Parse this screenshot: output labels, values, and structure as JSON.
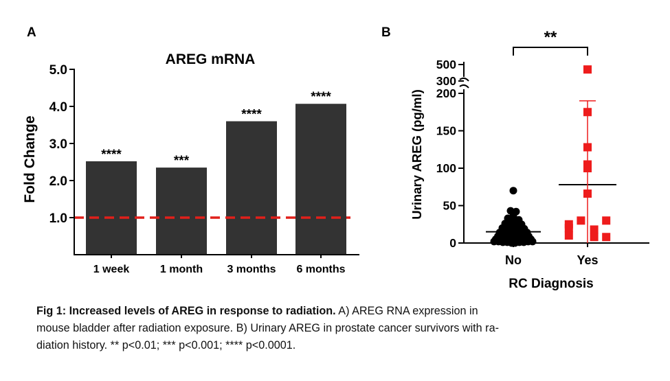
{
  "chart_data": [
    {
      "panel": "A",
      "type": "bar",
      "title": "AREG mRNA",
      "ylabel": "Fold Change",
      "xlabel": "",
      "ylim": [
        0,
        5
      ],
      "yticks": [
        "5.0",
        "4.0",
        "3.0",
        "2.0",
        "1.0"
      ],
      "ytick_values": [
        5,
        4,
        3,
        2,
        1
      ],
      "categories": [
        "1 week",
        "1 month",
        "3 months",
        "6 months"
      ],
      "values": [
        2.52,
        2.35,
        3.6,
        4.07
      ],
      "significance": [
        "****",
        "***",
        "****",
        "****"
      ],
      "reference_line": {
        "value": 1.0,
        "color": "#e0201b",
        "style": "dashed"
      },
      "bar_color": "#333333"
    },
    {
      "panel": "B",
      "type": "scatter",
      "ylabel": "Urinary AREG (pg/ml)",
      "xlabel": "RC Diagnosis",
      "categories": [
        "No",
        "Yes"
      ],
      "yticks_lower": [
        "0",
        "50",
        "100",
        "150",
        "200"
      ],
      "yticks_lower_values": [
        0,
        50,
        100,
        150,
        200
      ],
      "yticks_upper": [
        "300",
        "500"
      ],
      "yticks_upper_values": [
        300,
        500
      ],
      "ylim_lower": [
        0,
        200
      ],
      "ylim_upper": [
        300,
        500
      ],
      "significance": "**",
      "series": [
        {
          "name": "No",
          "color": "#000000",
          "marker": "circle",
          "mean": 15,
          "sd_upper": 27,
          "sd_lower": 3,
          "points": [
            {
              "x": 0.0,
              "y": 70
            },
            {
              "x": -0.05,
              "y": 43
            },
            {
              "x": 0.05,
              "y": 42
            },
            {
              "x": 0.0,
              "y": 36
            },
            {
              "x": -0.1,
              "y": 33
            },
            {
              "x": 0.1,
              "y": 31
            },
            {
              "x": -0.02,
              "y": 29
            },
            {
              "x": 0.03,
              "y": 28
            },
            {
              "x": -0.15,
              "y": 26
            },
            {
              "x": 0.15,
              "y": 25
            },
            {
              "x": -0.08,
              "y": 23
            },
            {
              "x": 0.08,
              "y": 22
            },
            {
              "x": 0.0,
              "y": 21
            },
            {
              "x": -0.2,
              "y": 20
            },
            {
              "x": 0.2,
              "y": 19
            },
            {
              "x": -0.12,
              "y": 18
            },
            {
              "x": 0.12,
              "y": 17
            },
            {
              "x": -0.04,
              "y": 16
            },
            {
              "x": 0.04,
              "y": 15
            },
            {
              "x": -0.25,
              "y": 14
            },
            {
              "x": 0.25,
              "y": 14
            },
            {
              "x": -0.17,
              "y": 13
            },
            {
              "x": 0.17,
              "y": 12
            },
            {
              "x": -0.09,
              "y": 12
            },
            {
              "x": 0.09,
              "y": 11
            },
            {
              "x": 0.0,
              "y": 10
            },
            {
              "x": -0.28,
              "y": 9
            },
            {
              "x": 0.28,
              "y": 9
            },
            {
              "x": -0.21,
              "y": 8
            },
            {
              "x": 0.21,
              "y": 8
            },
            {
              "x": -0.13,
              "y": 7
            },
            {
              "x": 0.13,
              "y": 7
            },
            {
              "x": -0.05,
              "y": 6
            },
            {
              "x": 0.05,
              "y": 6
            },
            {
              "x": -0.32,
              "y": 5
            },
            {
              "x": 0.32,
              "y": 5
            },
            {
              "x": -0.24,
              "y": 5
            },
            {
              "x": 0.24,
              "y": 4
            },
            {
              "x": -0.16,
              "y": 4
            },
            {
              "x": 0.16,
              "y": 4
            },
            {
              "x": -0.08,
              "y": 3
            },
            {
              "x": 0.08,
              "y": 3
            },
            {
              "x": 0.0,
              "y": 3
            },
            {
              "x": -0.35,
              "y": 2
            },
            {
              "x": 0.35,
              "y": 2
            },
            {
              "x": -0.27,
              "y": 2
            },
            {
              "x": 0.27,
              "y": 2
            },
            {
              "x": -0.19,
              "y": 1
            },
            {
              "x": 0.19,
              "y": 1
            },
            {
              "x": -0.11,
              "y": 1
            },
            {
              "x": 0.11,
              "y": 1
            },
            {
              "x": -0.03,
              "y": 0
            },
            {
              "x": 0.03,
              "y": 0
            }
          ]
        },
        {
          "name": "Yes",
          "color": "#ee1c1c",
          "marker": "square",
          "mean": 78,
          "sd_upper": 190,
          "sd_lower": 0,
          "points": [
            {
              "x": 0.0,
              "y": 440
            },
            {
              "x": 0.0,
              "y": 175
            },
            {
              "x": 0.0,
              "y": 128
            },
            {
              "x": 0.0,
              "y": 105
            },
            {
              "x": 0.0,
              "y": 100
            },
            {
              "x": 0.0,
              "y": 66
            },
            {
              "x": -0.34,
              "y": 25
            },
            {
              "x": -0.12,
              "y": 30
            },
            {
              "x": 0.12,
              "y": 18
            },
            {
              "x": 0.34,
              "y": 30
            },
            {
              "x": -0.34,
              "y": 20
            },
            {
              "x": -0.34,
              "y": 10
            },
            {
              "x": 0.12,
              "y": 8
            },
            {
              "x": 0.34,
              "y": 8
            }
          ]
        }
      ]
    }
  ],
  "labels": {
    "panel_a": "A",
    "panel_b": "B"
  },
  "caption": {
    "bold": "Fig 1: Increased levels of AREG in response to radiation.",
    "line1_rest": " A) AREG RNA expression in",
    "line2": "mouse bladder after radiation exposure. B) Urinary AREG in prostate cancer survivors with ra-",
    "line3": "diation history. ** p<0.01; *** p<0.001; **** p<0.0001."
  }
}
